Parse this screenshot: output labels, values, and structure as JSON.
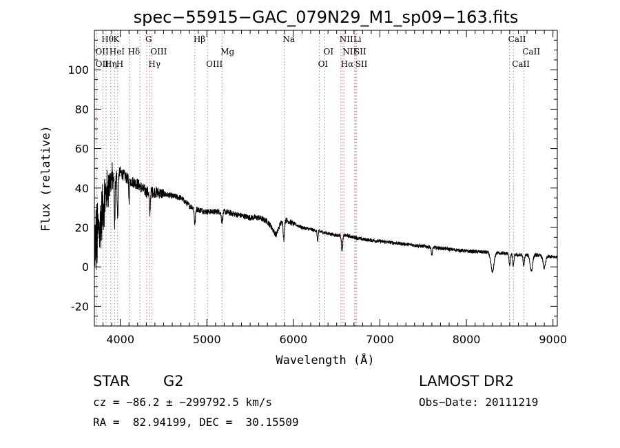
{
  "chart_data": {
    "type": "line",
    "title": "spec−55915−GAC_079N29_M1_sp09−163.fits",
    "xlabel": "Wavelength (Å)",
    "ylabel": "Flux (relative)",
    "xlim": [
      3700,
      9050
    ],
    "ylim": [
      -30,
      120
    ],
    "xticks": [
      4000,
      5000,
      6000,
      7000,
      8000,
      9000
    ],
    "yticks": [
      -20,
      0,
      20,
      40,
      60,
      80,
      100
    ],
    "grid": false,
    "series": [
      {
        "anchors_x": [
          3700,
          3760,
          3820,
          3900,
          4000,
          4100,
          4200,
          4300,
          4400,
          4500,
          4600,
          4700,
          4800,
          4900,
          5000,
          5100,
          5200,
          5300,
          5400,
          5500,
          5600,
          5700,
          5750,
          5800,
          5850,
          5900,
          6000,
          6100,
          6200,
          6300,
          6400,
          6500,
          6600,
          6700,
          6800,
          7000,
          7200,
          7400,
          7600,
          7800,
          8000,
          8200,
          8400,
          8600,
          8800,
          9000,
          9050
        ],
        "anchors_y": [
          10,
          20,
          35,
          45,
          48,
          44,
          42,
          38,
          38,
          37,
          36,
          35,
          31,
          29,
          28,
          28,
          28,
          27,
          26,
          25,
          25,
          23,
          20,
          16,
          22,
          24,
          22,
          20,
          19,
          18,
          17,
          16,
          16,
          15,
          14,
          13,
          12,
          11,
          10,
          9,
          8,
          7.5,
          7,
          6,
          6,
          5,
          5
        ],
        "features": [
          {
            "x": 3750,
            "width": 60,
            "amp": 40,
            "type": "noise"
          },
          {
            "x": 3934,
            "width": 8,
            "amp": -25
          },
          {
            "x": 3969,
            "width": 8,
            "amp": -20
          },
          {
            "x": 4101,
            "width": 6,
            "amp": -10
          },
          {
            "x": 4340,
            "width": 8,
            "amp": -12
          },
          {
            "x": 4861,
            "width": 10,
            "amp": -8
          },
          {
            "x": 5175,
            "width": 12,
            "amp": -5
          },
          {
            "x": 5890,
            "width": 10,
            "amp": -10
          },
          {
            "x": 6280,
            "width": 8,
            "amp": -5
          },
          {
            "x": 6563,
            "width": 10,
            "amp": -8
          },
          {
            "x": 7600,
            "width": 10,
            "amp": -4
          },
          {
            "x": 8300,
            "width": 25,
            "amp": -10
          },
          {
            "x": 8500,
            "width": 10,
            "amp": -6
          },
          {
            "x": 8542,
            "width": 10,
            "amp": -6
          },
          {
            "x": 8662,
            "width": 10,
            "amp": -6
          },
          {
            "x": 8750,
            "width": 20,
            "amp": -8
          },
          {
            "x": 8900,
            "width": 20,
            "amp": -6
          }
        ]
      }
    ],
    "annotations": [
      {
        "label": "Hθ",
        "x": 3798,
        "row": 0,
        "color": "#000000",
        "lineColor": "#888888"
      },
      {
        "label": "K",
        "x": 3934,
        "row": 0,
        "color": "#000000",
        "lineColor": "#888888"
      },
      {
        "label": "G",
        "x": 4305,
        "row": 0,
        "color": "#000000",
        "lineColor": "#888888"
      },
      {
        "label": "Hβ",
        "x": 4861,
        "row": 0,
        "color": "#000000",
        "lineColor": "#e07070"
      },
      {
        "label": "Na",
        "x": 5893,
        "row": 0,
        "color": "#000000",
        "lineColor": "#888888"
      },
      {
        "label": "NII",
        "x": 6548,
        "row": 0,
        "color": "#000000",
        "lineColor": "#e07070"
      },
      {
        "label": "Li",
        "x": 6708,
        "row": 0,
        "color": "#000000",
        "lineColor": "#888888"
      },
      {
        "label": "CaII",
        "x": 8498,
        "row": 0,
        "color": "#000000",
        "lineColor": "#888888"
      },
      {
        "label": "OII",
        "x": 3727,
        "row": 1,
        "color": "#000000",
        "lineColor": "#e07070"
      },
      {
        "label": "HeI",
        "x": 3889,
        "row": 1,
        "color": "#000000",
        "lineColor": "#888888"
      },
      {
        "label": "Hδ",
        "x": 4102,
        "row": 1,
        "color": "#000000",
        "lineColor": "#e07070"
      },
      {
        "label": "OIII",
        "x": 4363,
        "row": 1,
        "color": "#000000",
        "lineColor": "#e07070"
      },
      {
        "label": "Mg",
        "x": 5175,
        "row": 1,
        "color": "#000000",
        "lineColor": "#888888"
      },
      {
        "label": "OI",
        "x": 6363,
        "row": 1,
        "color": "#000000",
        "lineColor": "#e07070"
      },
      {
        "label": "NII",
        "x": 6584,
        "row": 1,
        "color": "#000000",
        "lineColor": "#e07070"
      },
      {
        "label": "SII",
        "x": 6717,
        "row": 1,
        "color": "#000000",
        "lineColor": "#e07070"
      },
      {
        "label": "CaII",
        "x": 8662,
        "row": 1,
        "color": "#000000",
        "lineColor": "#888888"
      },
      {
        "label": "OII",
        "x": 3729,
        "row": 2,
        "color": "#000000",
        "lineColor": "#e07070"
      },
      {
        "label": "Hη",
        "x": 3835,
        "row": 2,
        "color": "#000000",
        "lineColor": "#888888"
      },
      {
        "label": "H",
        "x": 3969,
        "row": 2,
        "color": "#000000",
        "lineColor": "#888888"
      },
      {
        "label": "Hγ",
        "x": 4340,
        "row": 2,
        "color": "#000000",
        "lineColor": "#e07070"
      },
      {
        "label": "OIII",
        "x": 5007,
        "row": 2,
        "color": "#000000",
        "lineColor": "#e07070"
      },
      {
        "label": "OI",
        "x": 6300,
        "row": 2,
        "color": "#000000",
        "lineColor": "#e07070"
      },
      {
        "label": "Hα",
        "x": 6563,
        "row": 2,
        "color": "#000000",
        "lineColor": "#e07070"
      },
      {
        "label": "SII",
        "x": 6731,
        "row": 2,
        "color": "#000000",
        "lineColor": "#e07070"
      },
      {
        "label": "CaII",
        "x": 8542,
        "row": 2,
        "color": "#000000",
        "lineColor": "#888888"
      },
      {
        "label": "",
        "x": 4227,
        "row": 2,
        "color": "#000000",
        "lineColor": "#888888"
      }
    ]
  },
  "info": {
    "object_class": "STAR",
    "subclass": "G2",
    "survey": "LAMOST DR2",
    "redshift": "cz = −86.2 ± −299792.5 km/s",
    "obs_date": "Obs−Date: 20111219",
    "coords": "RA =  82.94199, DEC =  30.15509"
  }
}
